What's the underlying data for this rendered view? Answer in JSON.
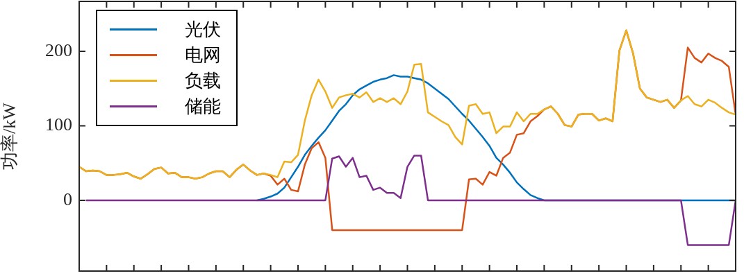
{
  "chart_data": {
    "type": "line",
    "ylabel": "功率/kW",
    "categories": [
      null,
      null,
      null,
      null,
      null,
      null,
      null,
      null,
      null,
      null,
      null,
      null,
      null,
      null,
      null,
      null,
      null,
      null,
      null,
      null,
      null,
      null,
      null,
      null,
      null,
      null,
      null,
      null,
      null,
      null,
      null,
      null,
      null,
      null,
      null,
      null,
      null,
      null,
      null,
      null,
      null,
      null,
      null,
      null,
      null,
      null,
      null,
      null,
      null,
      null,
      null,
      null,
      null,
      null,
      null,
      null,
      null,
      null,
      null,
      null,
      null,
      null,
      null,
      null,
      null,
      null,
      null,
      null,
      null,
      null,
      null,
      null,
      null,
      null,
      null,
      null,
      null,
      null,
      null,
      null,
      null,
      null,
      null,
      null,
      null,
      null,
      null,
      null,
      null,
      null,
      null,
      null,
      null,
      null,
      null,
      null,
      null
    ],
    "ylim": [
      -95,
      267
    ],
    "yticks": [
      0,
      100,
      200
    ],
    "grid": false,
    "legend": "top left",
    "marker": "none",
    "line_style": "solid",
    "series": [
      {
        "name": "光伏",
        "color": "#0072bd",
        "values": [
          null,
          null,
          null,
          null,
          null,
          null,
          null,
          null,
          null,
          null,
          null,
          null,
          null,
          null,
          null,
          null,
          null,
          null,
          null,
          null,
          null,
          null,
          null,
          null,
          null,
          null,
          0,
          2,
          5,
          9,
          17,
          31,
          45,
          61,
          73,
          84,
          94,
          107,
          120,
          129,
          141,
          149,
          154,
          159,
          162,
          164,
          168,
          166,
          166,
          164,
          162,
          157,
          150,
          143,
          136,
          126,
          116,
          107,
          96,
          85,
          73,
          57,
          48,
          37,
          24,
          15,
          7,
          3,
          0,
          0,
          0,
          0,
          0,
          0,
          0,
          0,
          0,
          0,
          0,
          0,
          0,
          0,
          0,
          0,
          0,
          0,
          0,
          0,
          0,
          0,
          0,
          0,
          0,
          0,
          0,
          0,
          0
        ]
      },
      {
        "name": "电网",
        "color": "#d95319",
        "values": [
          45,
          39,
          40,
          39,
          34,
          34,
          35,
          37,
          32,
          29,
          35,
          42,
          44,
          36,
          37,
          31,
          31,
          29,
          31,
          36,
          39,
          39,
          31,
          41,
          48,
          40,
          34,
          36,
          33,
          21,
          29,
          14,
          12,
          48,
          70,
          78,
          57,
          -40,
          -40,
          -40,
          -40,
          -40,
          -40,
          -40,
          -40,
          -40,
          -40,
          -40,
          -40,
          -40,
          -40,
          -40,
          -40,
          -40,
          -40,
          -40,
          -40,
          28,
          29,
          21,
          38,
          33,
          57,
          64,
          88,
          90,
          106,
          113,
          122,
          126,
          116,
          101,
          99,
          115,
          116,
          116,
          107,
          110,
          106,
          201,
          228,
          197,
          150,
          138,
          135,
          132,
          135,
          124,
          134,
          205,
          191,
          185,
          197,
          191,
          187,
          179,
          115
        ]
      },
      {
        "name": "负载",
        "color": "#edb120",
        "values": [
          45,
          39,
          40,
          39,
          34,
          34,
          35,
          37,
          32,
          29,
          35,
          42,
          44,
          36,
          37,
          31,
          31,
          29,
          31,
          36,
          39,
          39,
          31,
          41,
          48,
          40,
          34,
          36,
          34,
          31,
          52,
          51,
          61,
          107,
          141,
          162,
          146,
          124,
          138,
          141,
          143,
          138,
          145,
          132,
          137,
          132,
          137,
          129,
          146,
          182,
          183,
          118,
          112,
          106,
          101,
          85,
          75,
          127,
          129,
          116,
          118,
          90,
          99,
          99,
          118,
          106,
          116,
          116,
          122,
          126,
          116,
          101,
          99,
          115,
          116,
          116,
          107,
          110,
          106,
          201,
          228,
          197,
          150,
          138,
          135,
          132,
          135,
          124,
          134,
          140,
          129,
          126,
          135,
          131,
          124,
          118,
          115
        ]
      },
      {
        "name": "储能",
        "color": "#7e2f8e",
        "values": [
          null,
          0,
          0,
          0,
          0,
          0,
          0,
          0,
          0,
          0,
          0,
          0,
          0,
          0,
          0,
          0,
          0,
          0,
          0,
          0,
          0,
          0,
          0,
          0,
          0,
          0,
          0,
          0,
          0,
          0,
          0,
          0,
          0,
          0,
          0,
          0,
          0,
          56,
          59,
          45,
          57,
          31,
          33,
          14,
          17,
          10,
          10,
          3,
          45,
          60,
          60,
          0,
          0,
          0,
          0,
          0,
          0,
          0,
          0,
          0,
          0,
          0,
          0,
          0,
          0,
          0,
          0,
          0,
          0,
          0,
          0,
          0,
          0,
          0,
          0,
          0,
          0,
          0,
          0,
          0,
          0,
          0,
          0,
          0,
          0,
          0,
          0,
          0,
          0,
          -60,
          -60,
          -60,
          -60,
          -60,
          -60,
          -60,
          0
        ]
      }
    ]
  }
}
